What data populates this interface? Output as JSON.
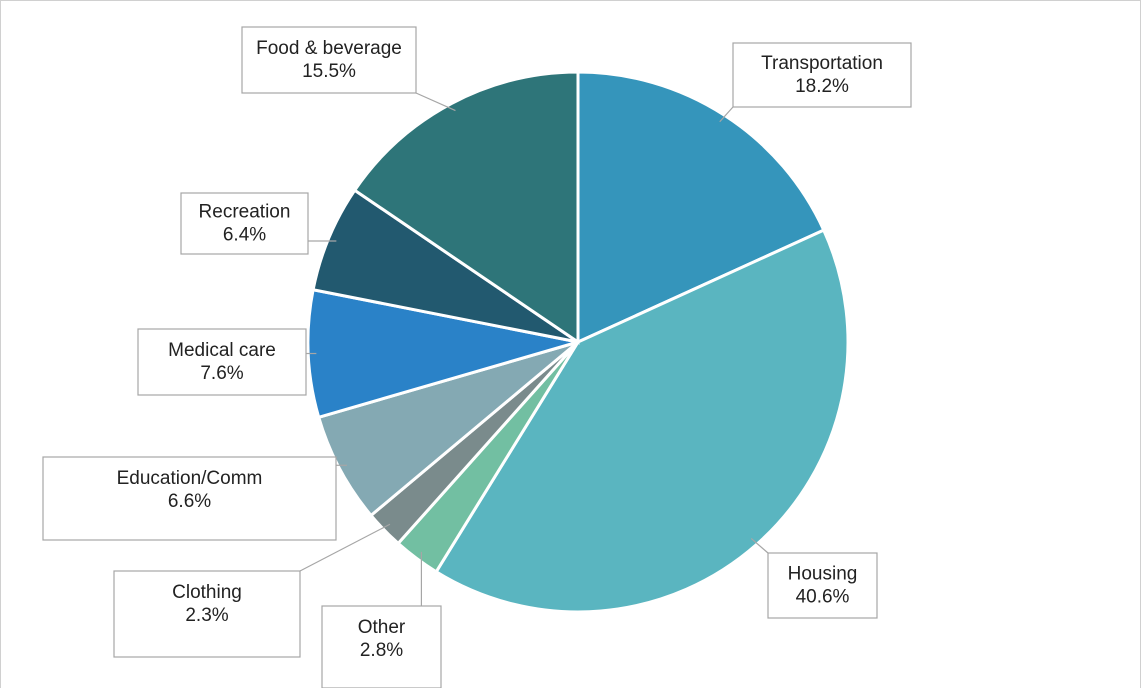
{
  "chart_data": {
    "type": "pie",
    "categories": [
      "Transportation",
      "Housing",
      "Other",
      "Clothing",
      "Education/Comm",
      "Medical care",
      "Recreation",
      "Food & beverage"
    ],
    "values": [
      18.2,
      40.6,
      2.8,
      2.3,
      6.6,
      7.6,
      6.4,
      15.5
    ],
    "value_labels": [
      "18.2%",
      "40.6%",
      "2.8%",
      "2.3%",
      "6.6%",
      "7.6%",
      "6.4%",
      "15.5%"
    ],
    "colors": [
      "#3595bb",
      "#5ab5c0",
      "#72bfa2",
      "#7a8b8c",
      "#84a9b3",
      "#2a82c8",
      "#22596f",
      "#2e7579"
    ]
  }
}
